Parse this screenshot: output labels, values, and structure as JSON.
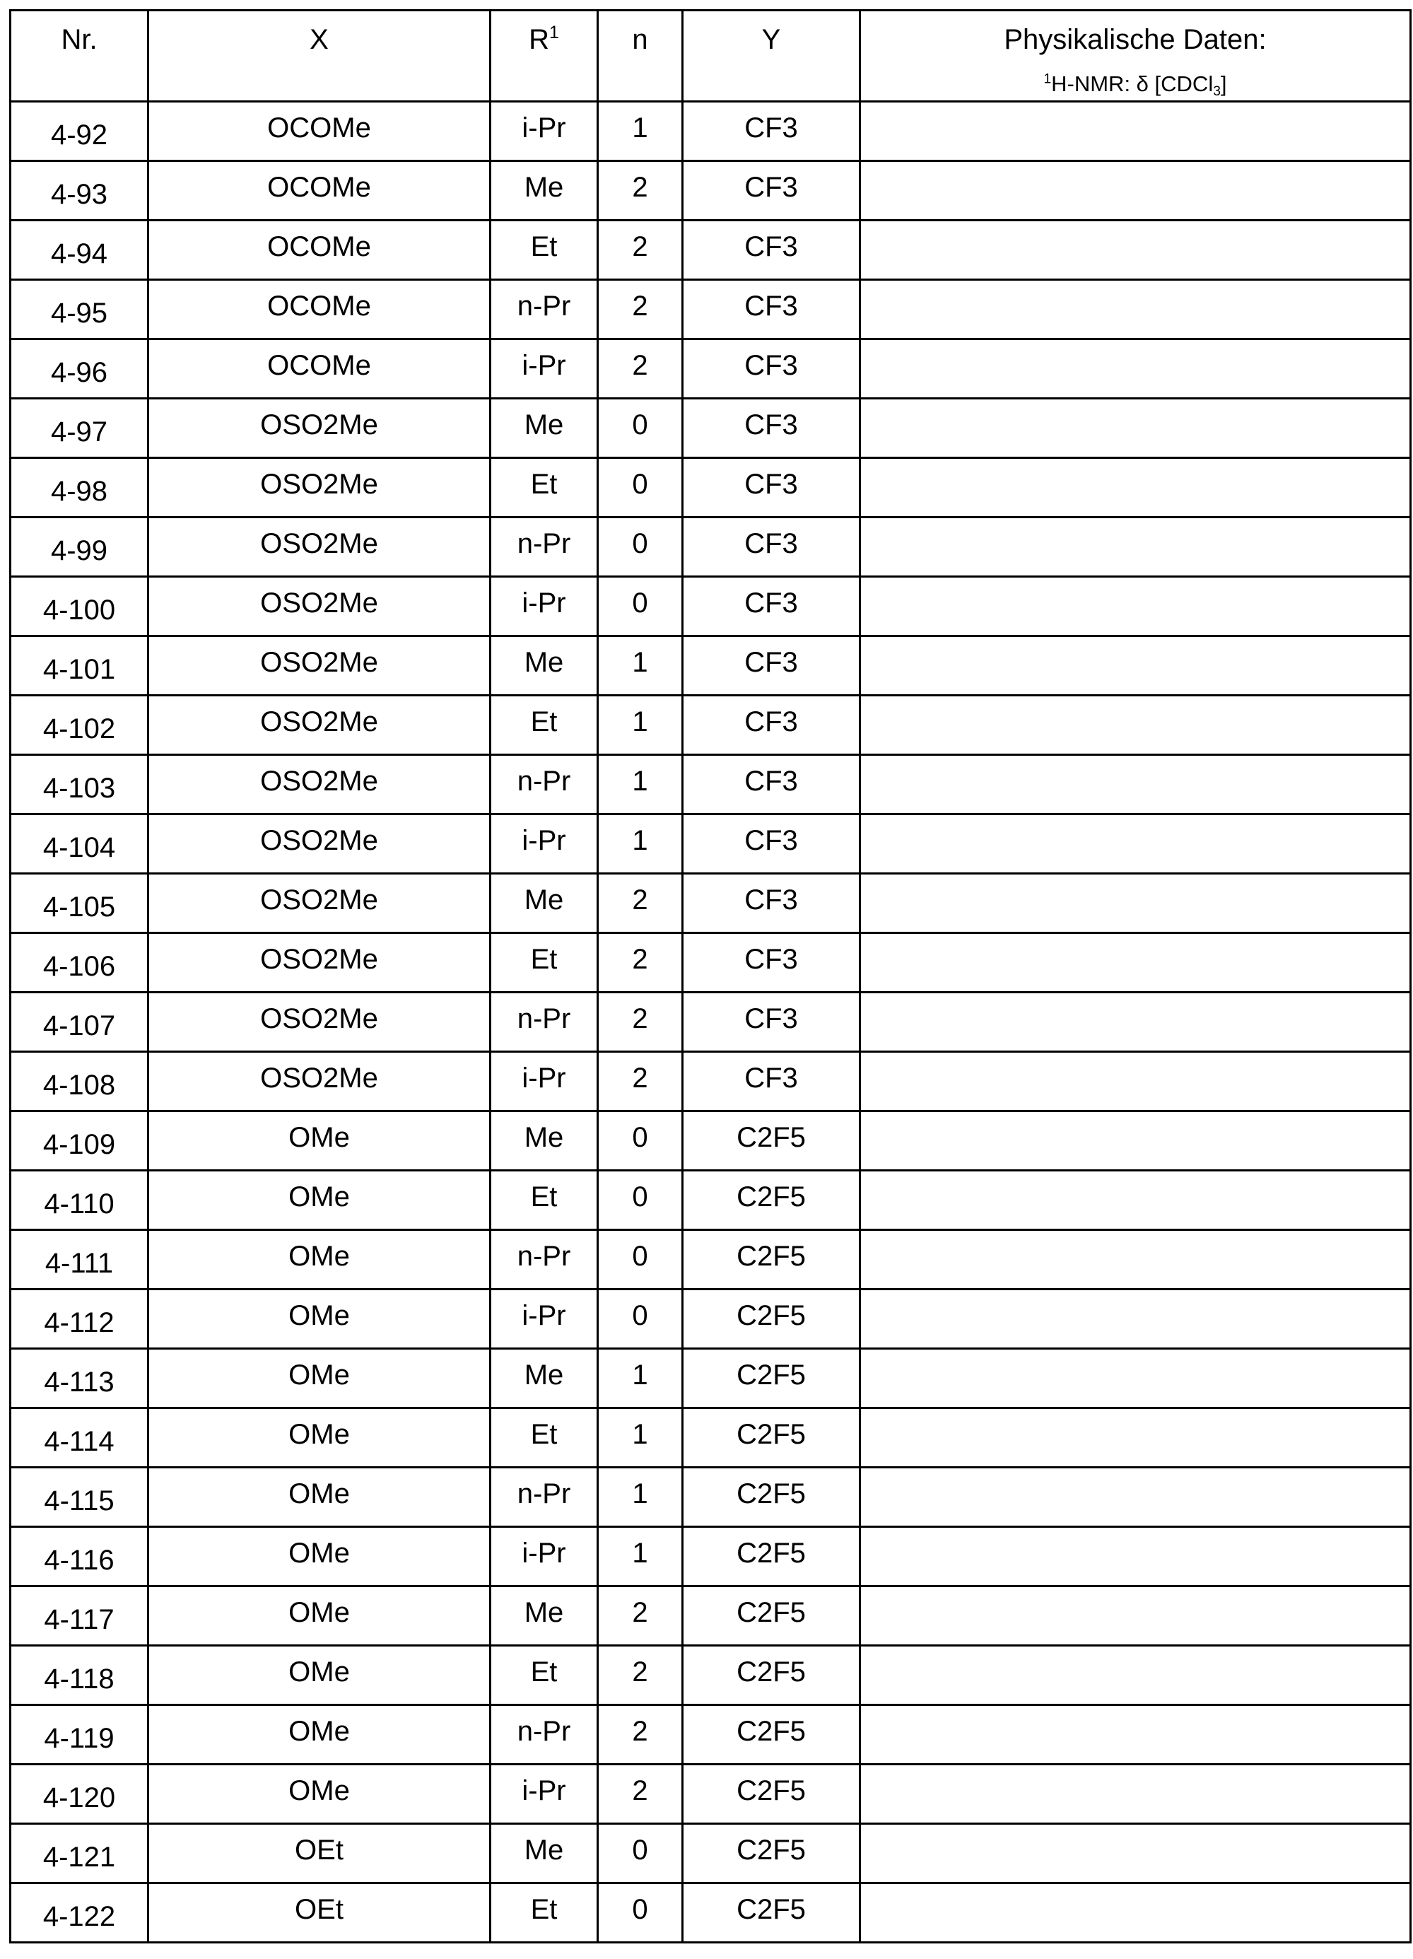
{
  "headers": {
    "nr": "Nr.",
    "x": "X",
    "r1": "R",
    "r1_sup": "1",
    "n": "n",
    "y": "Y",
    "phys_line1": "Physikalische Daten:",
    "phys_line2_sup": "1",
    "phys_line2_a": "H-NMR: δ [CDCl",
    "phys_line2_sub": "3",
    "phys_line2_b": "]"
  },
  "rows": [
    [
      "4-92",
      "OCOMe",
      "i-Pr",
      "1",
      "CF3"
    ],
    [
      "4-93",
      "OCOMe",
      "Me",
      "2",
      "CF3"
    ],
    [
      "4-94",
      "OCOMe",
      "Et",
      "2",
      "CF3"
    ],
    [
      "4-95",
      "OCOMe",
      "n-Pr",
      "2",
      "CF3"
    ],
    [
      "4-96",
      "OCOMe",
      "i-Pr",
      "2",
      "CF3"
    ],
    [
      "4-97",
      "OSO2Me",
      "Me",
      "0",
      "CF3"
    ],
    [
      "4-98",
      "OSO2Me",
      "Et",
      "0",
      "CF3"
    ],
    [
      "4-99",
      "OSO2Me",
      "n-Pr",
      "0",
      "CF3"
    ],
    [
      "4-100",
      "OSO2Me",
      "i-Pr",
      "0",
      "CF3"
    ],
    [
      "4-101",
      "OSO2Me",
      "Me",
      "1",
      "CF3"
    ],
    [
      "4-102",
      "OSO2Me",
      "Et",
      "1",
      "CF3"
    ],
    [
      "4-103",
      "OSO2Me",
      "n-Pr",
      "1",
      "CF3"
    ],
    [
      "4-104",
      "OSO2Me",
      "i-Pr",
      "1",
      "CF3"
    ],
    [
      "4-105",
      "OSO2Me",
      "Me",
      "2",
      "CF3"
    ],
    [
      "4-106",
      "OSO2Me",
      "Et",
      "2",
      "CF3"
    ],
    [
      "4-107",
      "OSO2Me",
      "n-Pr",
      "2",
      "CF3"
    ],
    [
      "4-108",
      "OSO2Me",
      "i-Pr",
      "2",
      "CF3"
    ],
    [
      "4-109",
      "OMe",
      "Me",
      "0",
      "C2F5"
    ],
    [
      "4-110",
      "OMe",
      "Et",
      "0",
      "C2F5"
    ],
    [
      "4-111",
      "OMe",
      "n-Pr",
      "0",
      "C2F5"
    ],
    [
      "4-112",
      "OMe",
      "i-Pr",
      "0",
      "C2F5"
    ],
    [
      "4-113",
      "OMe",
      "Me",
      "1",
      "C2F5"
    ],
    [
      "4-114",
      "OMe",
      "Et",
      "1",
      "C2F5"
    ],
    [
      "4-115",
      "OMe",
      "n-Pr",
      "1",
      "C2F5"
    ],
    [
      "4-116",
      "OMe",
      "i-Pr",
      "1",
      "C2F5"
    ],
    [
      "4-117",
      "OMe",
      "Me",
      "2",
      "C2F5"
    ],
    [
      "4-118",
      "OMe",
      "Et",
      "2",
      "C2F5"
    ],
    [
      "4-119",
      "OMe",
      "n-Pr",
      "2",
      "C2F5"
    ],
    [
      "4-120",
      "OMe",
      "i-Pr",
      "2",
      "C2F5"
    ],
    [
      "4-121",
      "OEt",
      "Me",
      "0",
      "C2F5"
    ],
    [
      "4-122",
      "OEt",
      "Et",
      "0",
      "C2F5"
    ]
  ]
}
